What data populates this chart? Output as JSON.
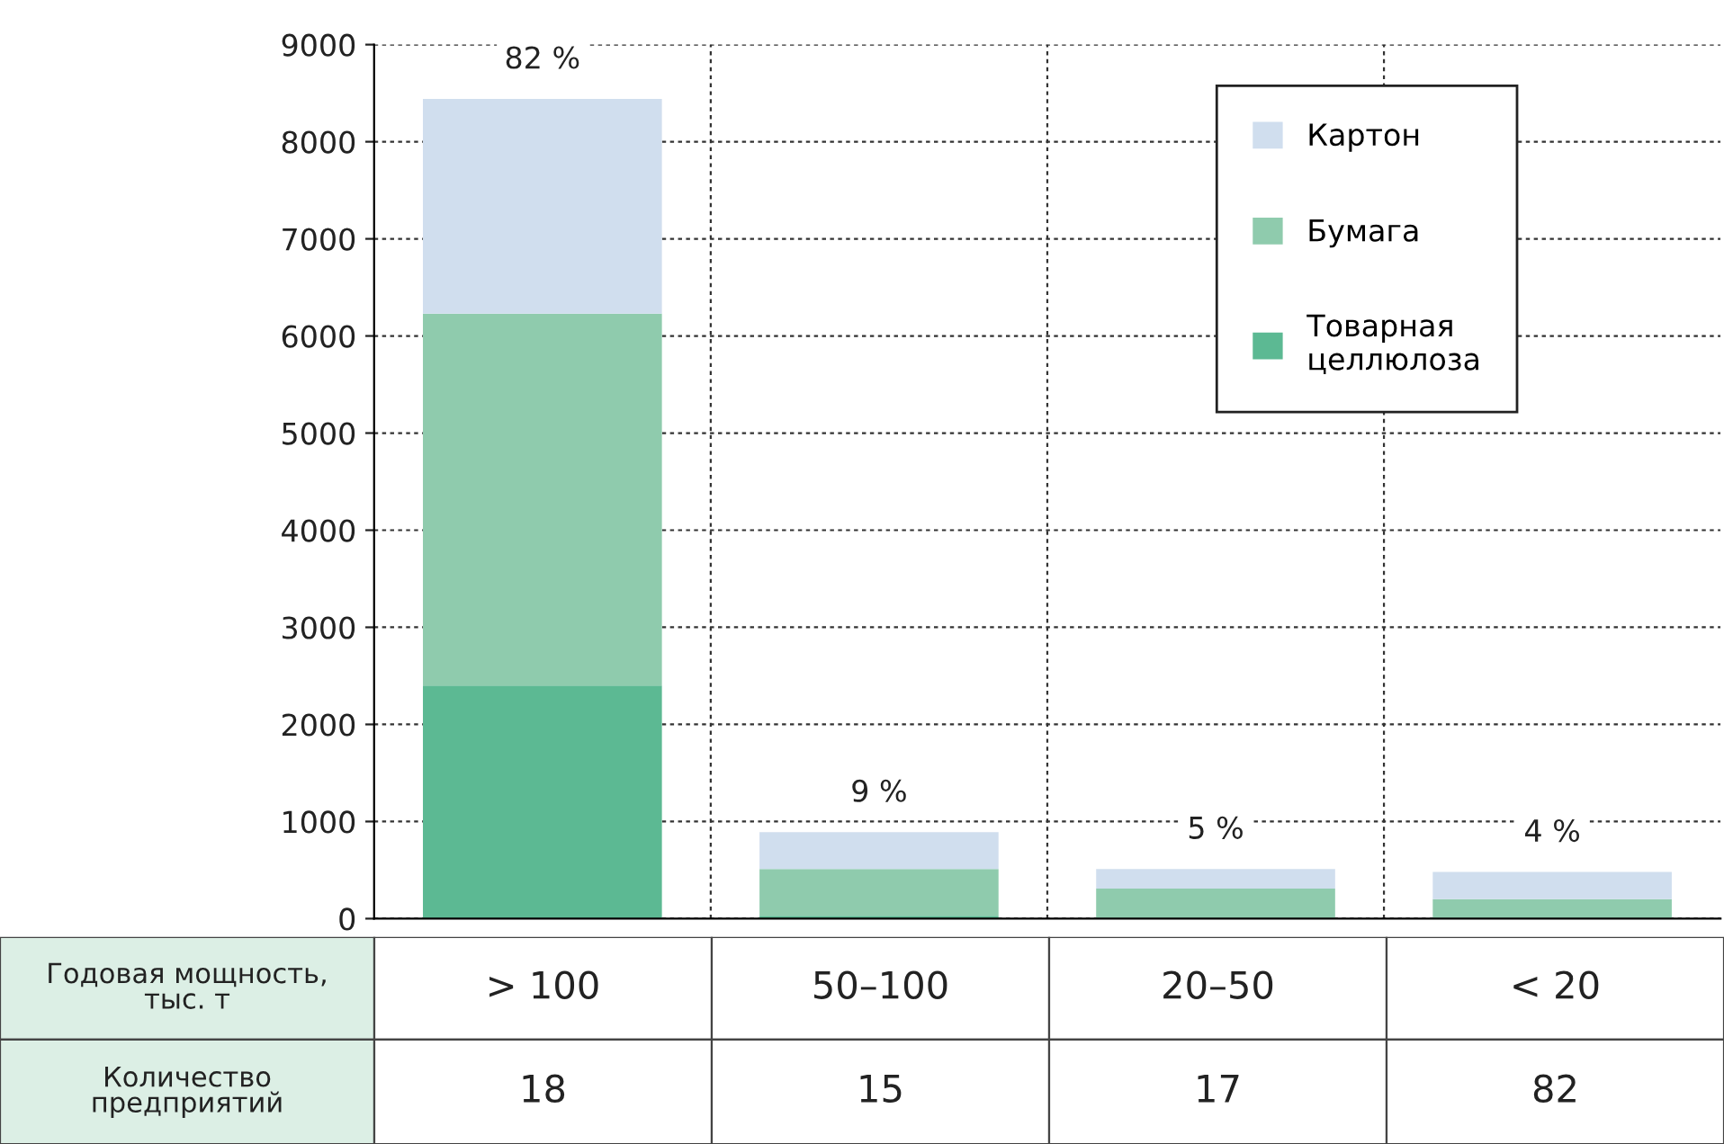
{
  "chart_data": {
    "type": "bar",
    "stacked": true,
    "categories": [
      "> 100",
      "50–100",
      "20–50",
      "< 20"
    ],
    "xlabel": "Годовая мощность, тыс. т",
    "series": [
      {
        "name": "Товарная\nцеллюлоза",
        "color": "#5cb993",
        "values": [
          2400,
          30,
          0,
          0
        ]
      },
      {
        "name": "Бумага",
        "color": "#8fcbad",
        "values": [
          3830,
          480,
          310,
          200
        ]
      },
      {
        "name": "Картон",
        "color": "#d0deee",
        "values": [
          2210,
          380,
          200,
          280
        ]
      }
    ],
    "annotations": [
      "Количество\nпредприятий",
      "18",
      "15",
      "17",
      "82",
      {
        "text": "82 %",
        "x": "> 100",
        "y": 8440
      },
      {
        "text": "9 %",
        "x": "50–100",
        "y": 890
      },
      {
        "text": "5 %",
        "x": "20–50",
        "y": 510
      },
      {
        "text": "4 %",
        "x": "< 20",
        "y": 480
      }
    ],
    "ylim": [
      0,
      9000
    ],
    "yticks": [
      0,
      1000,
      2000,
      3000,
      4000,
      5000,
      6000,
      7000,
      8000,
      9000
    ],
    "grid": true,
    "legend": "top right"
  }
}
